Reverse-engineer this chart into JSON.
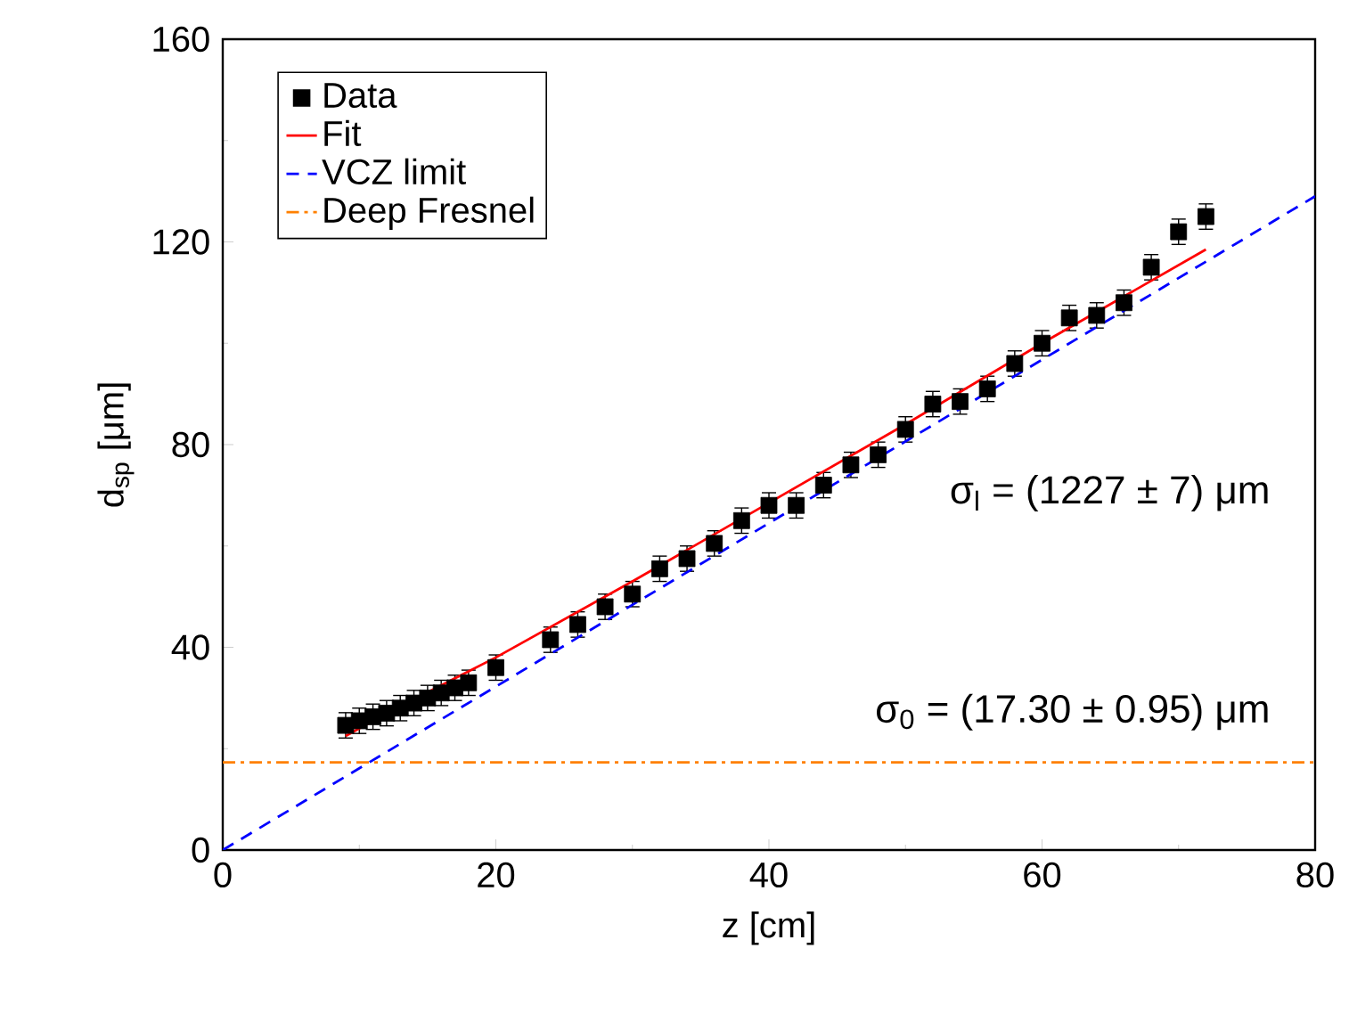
{
  "chart_data": {
    "type": "scatter",
    "xlabel": "z [cm]",
    "ylabel": "d$_{sp}$ [μm]",
    "xlim": [
      0,
      80
    ],
    "ylim": [
      0,
      160
    ],
    "xticks": [
      0,
      20,
      40,
      60,
      80
    ],
    "yticks": [
      0,
      40,
      80,
      120,
      160
    ],
    "legend": "top left",
    "grid": false,
    "annotations": [
      "σ$_{l}$ = (1227 ± 7) μm",
      "σ$_{0}$ = (17.30 ± 0.95) μm"
    ],
    "series": [
      {
        "name": "Data",
        "marker": "square",
        "color": "#000000",
        "x": [
          9,
          10,
          11,
          12,
          13,
          14,
          15,
          16,
          17,
          18,
          20,
          24,
          26,
          28,
          30,
          32,
          34,
          36,
          38,
          40,
          42,
          44,
          46,
          48,
          50,
          52,
          54,
          56,
          58,
          60,
          62,
          64,
          66,
          68,
          70,
          72
        ],
        "values": [
          24.6,
          25.5,
          26.3,
          27,
          28,
          29,
          30,
          31,
          32,
          33,
          36,
          41.5,
          44.5,
          48,
          50.5,
          55.5,
          57.5,
          60.5,
          65,
          68,
          68,
          72,
          76,
          78,
          83,
          88,
          88.5,
          91,
          96,
          100,
          105,
          105.5,
          108,
          115,
          122,
          125
        ],
        "errors": [
          2.5,
          2.5,
          2.5,
          2.5,
          2.5,
          2.5,
          2.5,
          2.5,
          2.5,
          2.5,
          2.5,
          2.5,
          2.5,
          2.5,
          2.5,
          2.5,
          2.5,
          2.5,
          2.5,
          2.5,
          2.5,
          2.5,
          2.5,
          2.5,
          2.5,
          2.5,
          2.5,
          2.5,
          2.5,
          2.5,
          2.5,
          2.5,
          2.5,
          2.5,
          2.5,
          2.5
        ]
      },
      {
        "name": "Fit",
        "type": "line",
        "line_style": "solid",
        "color": "#ff0000",
        "x": [
          9,
          12,
          16,
          20,
          30,
          40,
          50,
          60,
          72
        ],
        "values": [
          22.5,
          27,
          32.5,
          38,
          53,
          68.5,
          84,
          100,
          118.5
        ]
      },
      {
        "name": "VCZ limit",
        "type": "line",
        "line_style": "dashed",
        "color": "#0000ff",
        "x": [
          0,
          80
        ],
        "values": [
          0,
          129
        ]
      },
      {
        "name": "Deep Fresnel",
        "type": "line",
        "line_style": "dashdot",
        "color": "#ff8000",
        "x": [
          0,
          80
        ],
        "values": [
          17.3,
          17.3
        ]
      }
    ]
  }
}
